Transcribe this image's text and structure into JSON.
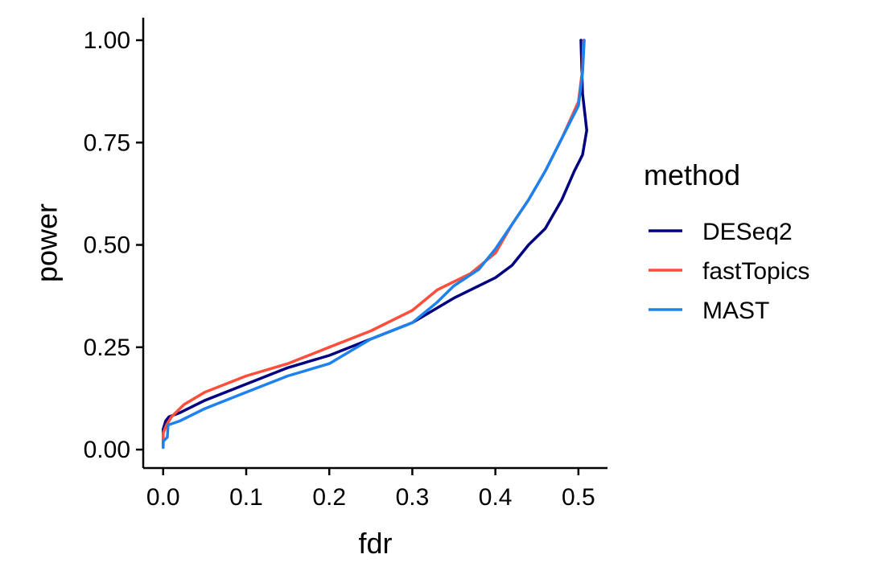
{
  "chart_data": {
    "type": "line",
    "title": "",
    "xlabel": "fdr",
    "ylabel": "power",
    "xlim": [
      -0.024,
      0.535
    ],
    "ylim": [
      -0.045,
      1.055
    ],
    "xticks": [
      0.0,
      0.1,
      0.2,
      0.3,
      0.4,
      0.5
    ],
    "xtick_labels": [
      "0.0",
      "0.1",
      "0.2",
      "0.3",
      "0.4",
      "0.5"
    ],
    "yticks": [
      0.0,
      0.25,
      0.5,
      0.75,
      1.0
    ],
    "ytick_labels": [
      "0.00",
      "0.25",
      "0.50",
      "0.75",
      "1.00"
    ],
    "grid": false,
    "legend": {
      "title": "method",
      "position": "right"
    },
    "series": [
      {
        "name": "DESeq2",
        "color": "#000080",
        "points": [
          [
            0.0,
            0.01
          ],
          [
            0.0,
            0.05
          ],
          [
            0.003,
            0.07
          ],
          [
            0.007,
            0.08
          ],
          [
            0.02,
            0.09
          ],
          [
            0.05,
            0.12
          ],
          [
            0.1,
            0.16
          ],
          [
            0.15,
            0.2
          ],
          [
            0.2,
            0.23
          ],
          [
            0.25,
            0.27
          ],
          [
            0.3,
            0.31
          ],
          [
            0.35,
            0.37
          ],
          [
            0.4,
            0.42
          ],
          [
            0.42,
            0.45
          ],
          [
            0.44,
            0.5
          ],
          [
            0.46,
            0.54
          ],
          [
            0.48,
            0.61
          ],
          [
            0.495,
            0.68
          ],
          [
            0.505,
            0.72
          ],
          [
            0.51,
            0.78
          ],
          [
            0.505,
            0.87
          ],
          [
            0.503,
            1.0
          ]
        ]
      },
      {
        "name": "fastTopics",
        "color": "#ff4e3b",
        "points": [
          [
            0.0,
            0.01
          ],
          [
            0.0,
            0.04
          ],
          [
            0.004,
            0.06
          ],
          [
            0.01,
            0.08
          ],
          [
            0.02,
            0.1
          ],
          [
            0.025,
            0.11
          ],
          [
            0.05,
            0.14
          ],
          [
            0.1,
            0.18
          ],
          [
            0.15,
            0.21
          ],
          [
            0.2,
            0.25
          ],
          [
            0.25,
            0.29
          ],
          [
            0.3,
            0.34
          ],
          [
            0.33,
            0.39
          ],
          [
            0.37,
            0.43
          ],
          [
            0.4,
            0.48
          ],
          [
            0.42,
            0.55
          ],
          [
            0.44,
            0.61
          ],
          [
            0.46,
            0.68
          ],
          [
            0.48,
            0.76
          ],
          [
            0.5,
            0.85
          ],
          [
            0.505,
            0.93
          ],
          [
            0.506,
            1.0
          ]
        ]
      },
      {
        "name": "MAST",
        "color": "#1e82ee",
        "points": [
          [
            0.0,
            0.005
          ],
          [
            0.0,
            0.02
          ],
          [
            0.005,
            0.03
          ],
          [
            0.006,
            0.06
          ],
          [
            0.02,
            0.07
          ],
          [
            0.05,
            0.1
          ],
          [
            0.1,
            0.14
          ],
          [
            0.15,
            0.18
          ],
          [
            0.2,
            0.21
          ],
          [
            0.25,
            0.27
          ],
          [
            0.3,
            0.31
          ],
          [
            0.33,
            0.36
          ],
          [
            0.35,
            0.4
          ],
          [
            0.38,
            0.44
          ],
          [
            0.4,
            0.49
          ],
          [
            0.42,
            0.55
          ],
          [
            0.44,
            0.61
          ],
          [
            0.46,
            0.68
          ],
          [
            0.48,
            0.76
          ],
          [
            0.5,
            0.84
          ],
          [
            0.505,
            0.92
          ],
          [
            0.507,
            1.0
          ]
        ]
      }
    ]
  }
}
